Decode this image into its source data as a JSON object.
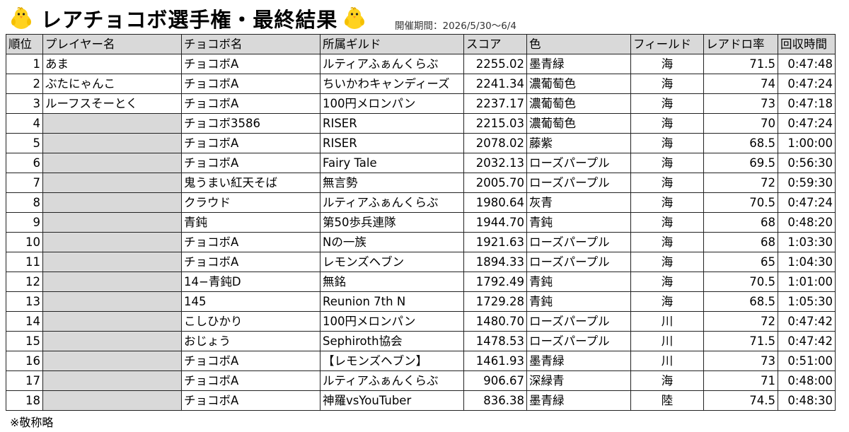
{
  "title": "レアチョコボ選手権・最終結果",
  "period": {
    "label": "開催期間：",
    "value": "2026/5/30〜6/4"
  },
  "table": {
    "columns": [
      "順位",
      "プレイヤー名",
      "チョコボ名",
      "所属ギルド",
      "スコア",
      "色",
      "フィールド",
      "レアドロ率",
      "回収時間"
    ],
    "rows": [
      {
        "rank": "1",
        "player": "あま",
        "chocobo": "チョコボA",
        "guild": "ルティアふぁんくらぶ",
        "score": "2255.02",
        "color": "墨青緑",
        "field": "海",
        "rate": "71.5",
        "time": "0:47:48",
        "redacted": false
      },
      {
        "rank": "2",
        "player": "ぶたにゃんこ",
        "chocobo": "チョコボA",
        "guild": "ちいかわキャンディーズ",
        "score": "2241.34",
        "color": "濃葡萄色",
        "field": "海",
        "rate": "74",
        "time": "0:47:24",
        "redacted": false
      },
      {
        "rank": "3",
        "player": "ルーフスそーとく",
        "chocobo": "チョコボA",
        "guild": "100円メロンパン",
        "score": "2237.17",
        "color": "濃葡萄色",
        "field": "海",
        "rate": "73",
        "time": "0:47:18",
        "redacted": false
      },
      {
        "rank": "4",
        "player": "",
        "chocobo": "チョコボ3586",
        "guild": "RISER",
        "score": "2215.03",
        "color": "濃葡萄色",
        "field": "海",
        "rate": "70",
        "time": "0:47:24",
        "redacted": true
      },
      {
        "rank": "5",
        "player": "",
        "chocobo": "チョコボA",
        "guild": "RISER",
        "score": "2078.02",
        "color": "藤紫",
        "field": "海",
        "rate": "68.5",
        "time": "1:00:00",
        "redacted": true
      },
      {
        "rank": "6",
        "player": "",
        "chocobo": "チョコボA",
        "guild": "Fairy Tale",
        "score": "2032.13",
        "color": "ローズパープル",
        "field": "海",
        "rate": "69.5",
        "time": "0:56:30",
        "redacted": true
      },
      {
        "rank": "7",
        "player": "",
        "chocobo": "鬼うまい紅天そば",
        "guild": "無言勢",
        "score": "2005.70",
        "color": "ローズパープル",
        "field": "海",
        "rate": "72",
        "time": "0:59:30",
        "redacted": true
      },
      {
        "rank": "8",
        "player": "",
        "chocobo": "クラウド",
        "guild": "ルティアふぁんくらぶ",
        "score": "1980.64",
        "color": "灰青",
        "field": "海",
        "rate": "70.5",
        "time": "0:47:24",
        "redacted": true
      },
      {
        "rank": "9",
        "player": "",
        "chocobo": "青鈍",
        "guild": "第50歩兵連隊",
        "score": "1944.70",
        "color": "青鈍",
        "field": "海",
        "rate": "68",
        "time": "0:48:20",
        "redacted": true
      },
      {
        "rank": "10",
        "player": "",
        "chocobo": "チョコボA",
        "guild": "Nの一族",
        "score": "1921.63",
        "color": "ローズパープル",
        "field": "海",
        "rate": "68",
        "time": "1:03:30",
        "redacted": true
      },
      {
        "rank": "11",
        "player": "",
        "chocobo": "チョコボA",
        "guild": "レモンズヘブン",
        "score": "1894.33",
        "color": "ローズパープル",
        "field": "海",
        "rate": "65",
        "time": "1:04:30",
        "redacted": true
      },
      {
        "rank": "12",
        "player": "",
        "chocobo": "14−青鈍D",
        "guild": "無銘",
        "score": "1792.49",
        "color": "青鈍",
        "field": "海",
        "rate": "70.5",
        "time": "1:01:00",
        "redacted": true
      },
      {
        "rank": "13",
        "player": "",
        "chocobo": "145",
        "guild": "Reunion 7th N",
        "score": "1729.28",
        "color": "青鈍",
        "field": "海",
        "rate": "68.5",
        "time": "1:05:30",
        "redacted": true
      },
      {
        "rank": "14",
        "player": "",
        "chocobo": "こしひかり",
        "guild": "100円メロンパン",
        "score": "1480.70",
        "color": "ローズパープル",
        "field": "川",
        "rate": "72",
        "time": "0:47:42",
        "redacted": true
      },
      {
        "rank": "15",
        "player": "",
        "chocobo": "おじょう",
        "guild": "Sephiroth協会",
        "score": "1478.53",
        "color": "ローズパープル",
        "field": "川",
        "rate": "71.5",
        "time": "0:47:42",
        "redacted": true
      },
      {
        "rank": "16",
        "player": "",
        "chocobo": "チョコボA",
        "guild": "【レモンズヘブン】",
        "score": "1461.93",
        "color": "墨青緑",
        "field": "川",
        "rate": "73",
        "time": "0:51:00",
        "redacted": true
      },
      {
        "rank": "17",
        "player": "",
        "chocobo": "チョコボA",
        "guild": "ルティアふぁんくらぶ",
        "score": "906.67",
        "color": "深緑青",
        "field": "海",
        "rate": "71",
        "time": "0:48:00",
        "redacted": true
      },
      {
        "rank": "18",
        "player": "",
        "chocobo": "チョコボA",
        "guild": "神羅vsYouTuber",
        "score": "836.38",
        "color": "墨青緑",
        "field": "陸",
        "rate": "74.5",
        "time": "0:48:30",
        "redacted": true
      }
    ]
  },
  "footnote": "※敬称略",
  "icons": [
    "chick-icon",
    "chick-icon"
  ],
  "colors": {
    "header_bg": "#d9d9d9",
    "redacted_bg": "#d9d9d9",
    "chick_body": "#ffd21f",
    "beak": "#ff8a1f"
  }
}
